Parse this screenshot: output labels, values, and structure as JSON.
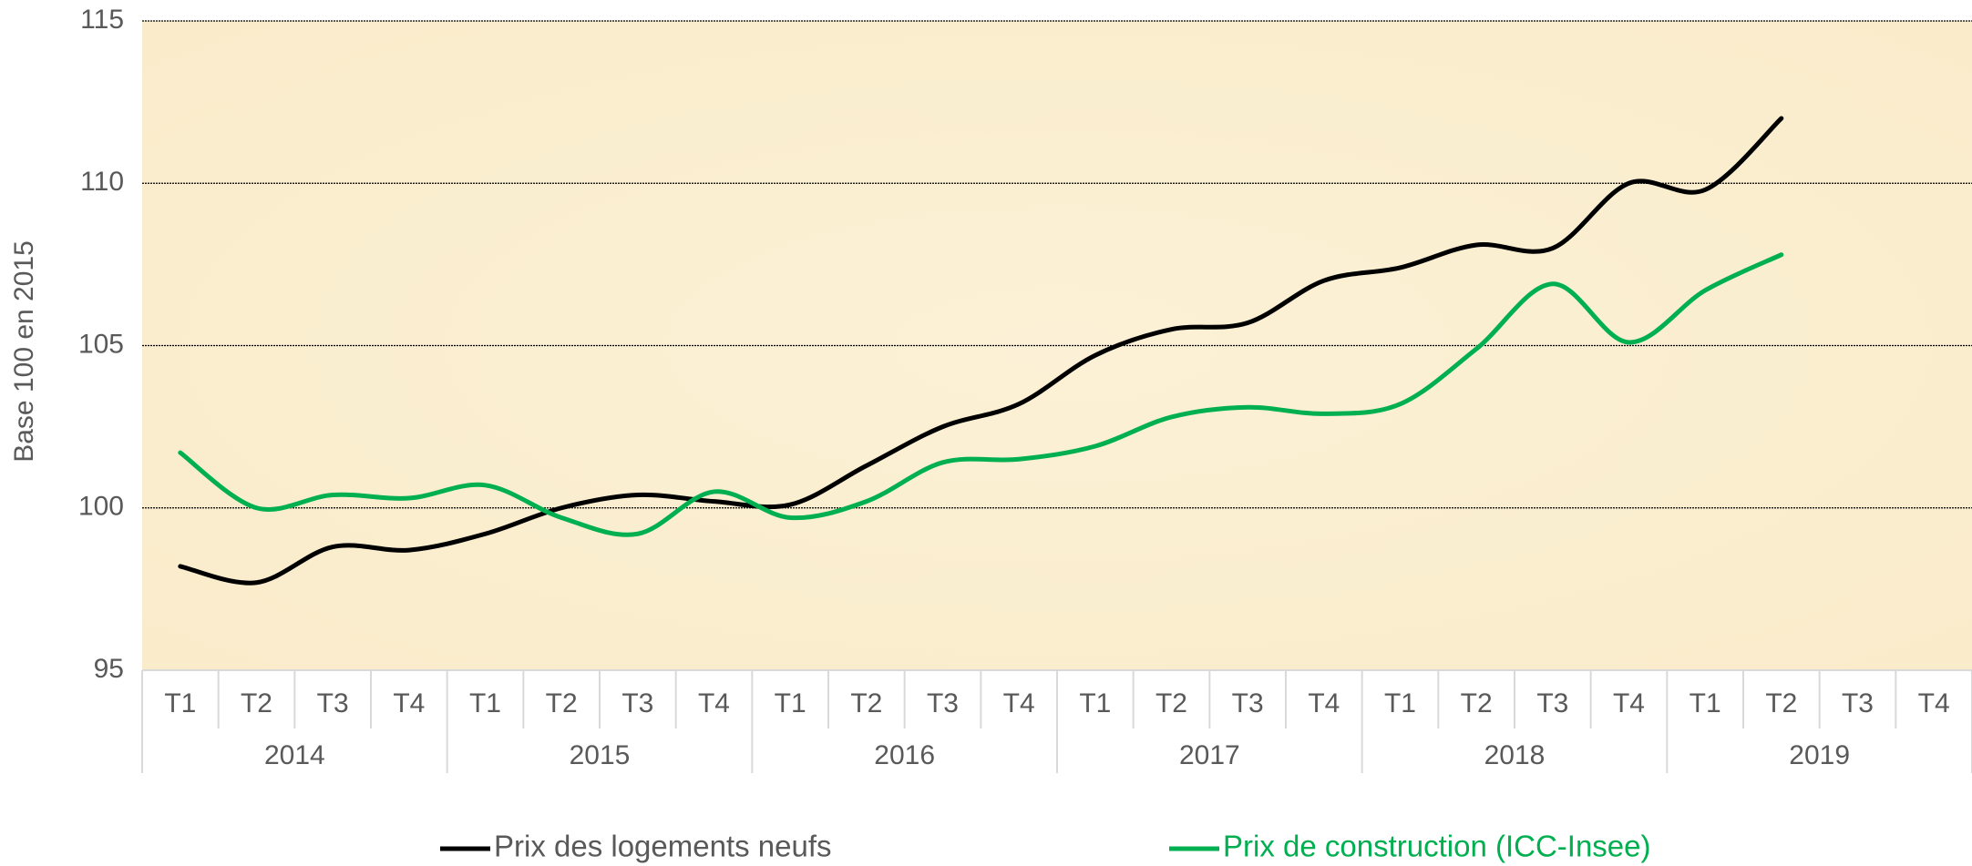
{
  "chart_data": {
    "type": "line",
    "y_axis_label": "Base 100 en 2015",
    "categories": [
      "T1",
      "T2",
      "T3",
      "T4",
      "T1",
      "T2",
      "T3",
      "T4",
      "T1",
      "T2",
      "T3",
      "T4",
      "T1",
      "T2",
      "T3",
      "T4",
      "T1",
      "T2",
      "T3",
      "T4",
      "T1",
      "T2",
      "T3",
      "T4"
    ],
    "category_groups": [
      "2014",
      "2015",
      "2016",
      "2017",
      "2018",
      "2019"
    ],
    "series": [
      {
        "name": "Prix des logements neufs",
        "color": "#000000",
        "values": [
          98.2,
          97.7,
          98.8,
          98.7,
          99.2,
          100.0,
          100.4,
          100.2,
          100.1,
          101.3,
          102.5,
          103.2,
          104.7,
          105.5,
          105.7,
          107.0,
          107.4,
          108.1,
          108.0,
          110.0,
          109.8,
          112.0,
          null,
          null
        ]
      },
      {
        "name": "Prix de construction (ICC-Insee)",
        "color": "#00b050",
        "values": [
          101.7,
          100.0,
          100.4,
          100.3,
          100.7,
          99.7,
          99.2,
          100.5,
          99.7,
          100.2,
          101.4,
          101.5,
          101.9,
          102.8,
          103.1,
          102.9,
          103.2,
          104.9,
          106.9,
          105.1,
          106.7,
          107.8,
          null,
          null
        ]
      }
    ],
    "ylim": [
      95,
      115
    ],
    "yticks": [
      95,
      100,
      105,
      110,
      115
    ],
    "grid": true,
    "smooth": true,
    "legend": "bottom"
  }
}
